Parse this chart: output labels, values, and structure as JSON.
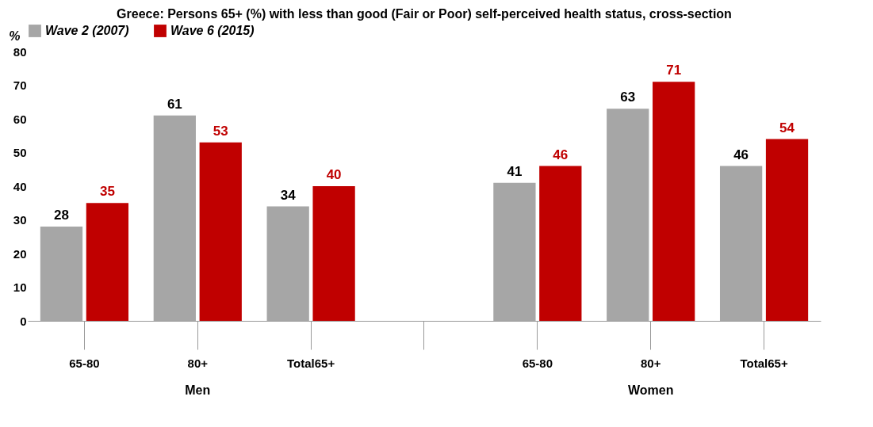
{
  "chart_data": {
    "type": "bar",
    "title": "Greece: Persons 65+ (%) with less than good (Fair or Poor) self-perceived health status, cross-section",
    "ylabel": "%",
    "categories": [
      "65-80",
      "80+",
      "Total65+",
      null,
      "65-80",
      "80+",
      "Total65+"
    ],
    "series": [
      {
        "name": "Wave 2 (2007)",
        "color": "#a6a6a6",
        "values": [
          28,
          61,
          34,
          null,
          41,
          63,
          46
        ]
      },
      {
        "name": "Wave 6 (2015)",
        "color": "#c00000",
        "values": [
          35,
          53,
          40,
          null,
          46,
          71,
          54
        ]
      }
    ],
    "ylim": [
      0,
      80
    ],
    "yticks": [
      0,
      10,
      20,
      30,
      40,
      50,
      60,
      70,
      80
    ],
    "grid": false,
    "legend": "top",
    "data_labels": true,
    "annotations": [
      "Men",
      "Women"
    ]
  }
}
